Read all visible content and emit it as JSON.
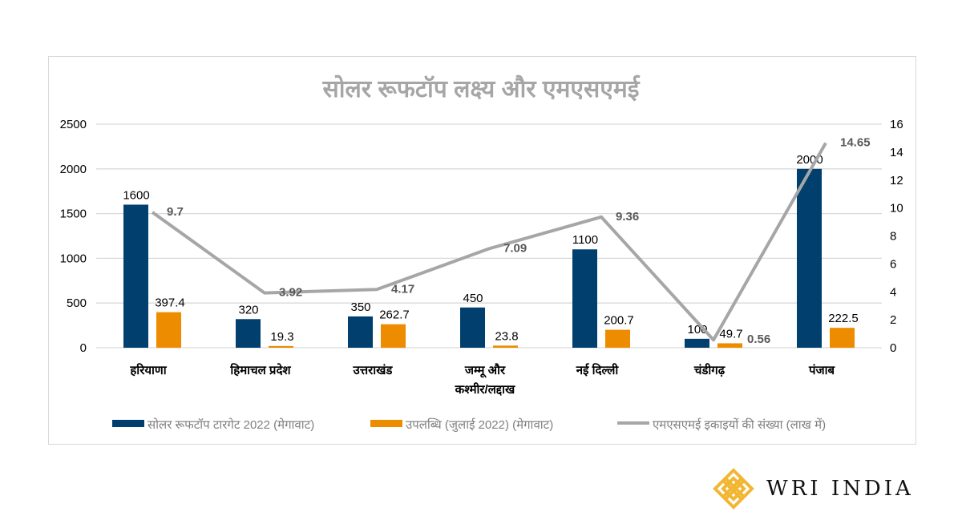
{
  "chart_data": {
    "type": "bar",
    "title": "सोलर रूफटॉप लक्ष्य और एमएसएमई",
    "categories": [
      "हरियाणा",
      "हिमाचल प्रदेश",
      "उत्तराखंड",
      "जम्मू और|कश्मीर/लद्दाख",
      "नई दिल्ली",
      "चंडीगढ़",
      "पंजाब"
    ],
    "series": [
      {
        "name": "सोलर रूफटॉप टारगेट 2022 (मेगावाट)",
        "type": "bar",
        "axis": "left",
        "color": "#003f6e",
        "values": [
          1600,
          320,
          350,
          450,
          1100,
          100,
          2000
        ],
        "labels": [
          "1600",
          "320",
          "350",
          "450",
          "1100",
          "100",
          "2000"
        ]
      },
      {
        "name": "उपलब्धि (जुलाई 2022) (मेगावाट)",
        "type": "bar",
        "axis": "left",
        "color": "#ee8c00",
        "values": [
          397.4,
          19.3,
          262.7,
          23.8,
          200.7,
          49.7,
          222.5
        ],
        "labels": [
          "397.4",
          "19.3",
          "262.7",
          "23.8",
          "200.7",
          "49.7",
          "222.5"
        ]
      },
      {
        "name": "एमएसएमई इकाइयों की संख्या (लाख में)",
        "type": "line",
        "axis": "right",
        "color": "#a6a6a6",
        "values": [
          9.7,
          3.92,
          4.17,
          7.09,
          9.36,
          0.56,
          14.65
        ],
        "labels": [
          "9.7",
          "3.92",
          "4.17",
          "7.09",
          "9.36",
          "0.56",
          "14.65"
        ]
      }
    ],
    "ylim_left": [
      0,
      2500
    ],
    "yticks_left": [
      "0",
      "500",
      "1000",
      "1500",
      "2000",
      "2500"
    ],
    "ylim_right": [
      0,
      16
    ],
    "yticks_right": [
      "0",
      "2",
      "4",
      "6",
      "8",
      "10",
      "12",
      "14",
      "16"
    ],
    "grid": true,
    "legend": "bottom"
  },
  "branding": {
    "logo_text": "WRI INDIA",
    "logo_color": "#f2b632"
  }
}
